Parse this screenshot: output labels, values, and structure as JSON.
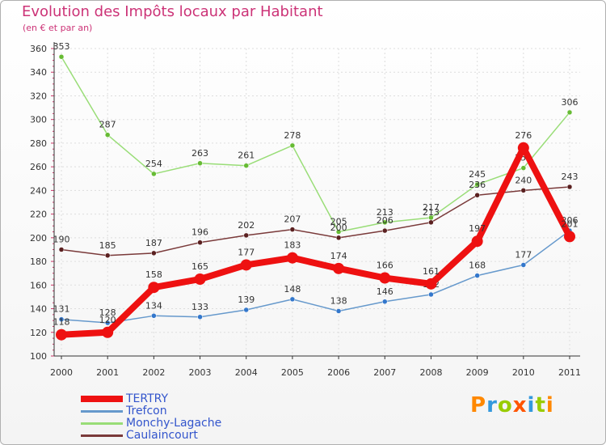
{
  "chart_data": {
    "type": "line",
    "title": "Evolution des Impôts locaux par Habitant",
    "subtitle": "(en € et par an)",
    "xlabel": "",
    "ylabel": "",
    "categories": [
      "2000",
      "2001",
      "2002",
      "2003",
      "2004",
      "2005",
      "2006",
      "2007",
      "2008",
      "2009",
      "2010",
      "2011"
    ],
    "ylim": [
      100,
      360
    ],
    "yticks": [
      100,
      120,
      140,
      160,
      180,
      200,
      220,
      240,
      260,
      280,
      300,
      320,
      340,
      360
    ],
    "grid": true,
    "series": [
      {
        "name": "Monchy-Lagache",
        "color": "#99dd77",
        "marker": "#66bb33",
        "values": [
          353,
          287,
          254,
          263,
          261,
          278,
          205,
          213,
          217,
          245,
          259,
          306
        ],
        "labels": [
          "353",
          "287",
          "254",
          "263",
          "261",
          "278",
          "205",
          "213",
          "217",
          "245",
          "259",
          "306"
        ]
      },
      {
        "name": "Caulaincourt",
        "color": "#7a3a3a",
        "marker": "#5a2020",
        "values": [
          190,
          185,
          187,
          196,
          202,
          207,
          200,
          206,
          213,
          236,
          240,
          243
        ],
        "labels": [
          "190",
          "185",
          "187",
          "196",
          "202",
          "207",
          "200",
          "206",
          "213",
          "236",
          "240",
          "243"
        ]
      },
      {
        "name": "Trefcon",
        "color": "#6699cc",
        "marker": "#3377cc",
        "values": [
          131,
          128,
          134,
          133,
          139,
          148,
          138,
          146,
          152,
          168,
          177,
          206
        ],
        "labels": [
          "131",
          "128",
          "134",
          "133",
          "139",
          "148",
          "138",
          "146",
          "152",
          "168",
          "177",
          "206"
        ]
      },
      {
        "name": "TERTRY",
        "color": "#ee1111",
        "marker": "#ee1111",
        "values": [
          118,
          120,
          158,
          165,
          177,
          183,
          174,
          166,
          161,
          197,
          276,
          201
        ],
        "labels": [
          "118",
          "120",
          "158",
          "165",
          "177",
          "183",
          "174",
          "166",
          "161",
          "197",
          "276",
          "201"
        ]
      }
    ],
    "legend": [
      "TERTRY",
      "Trefcon",
      "Monchy-Lagache",
      "Caulaincourt"
    ],
    "legend_position": "bottom-left"
  },
  "brand": {
    "letters": [
      "P",
      "r",
      "o",
      "x",
      "i",
      "t",
      "i"
    ],
    "colors": [
      "#ff8800",
      "#3399dd",
      "#99cc00",
      "#ff5500",
      "#3399dd",
      "#99cc00",
      "#ff8800"
    ]
  }
}
